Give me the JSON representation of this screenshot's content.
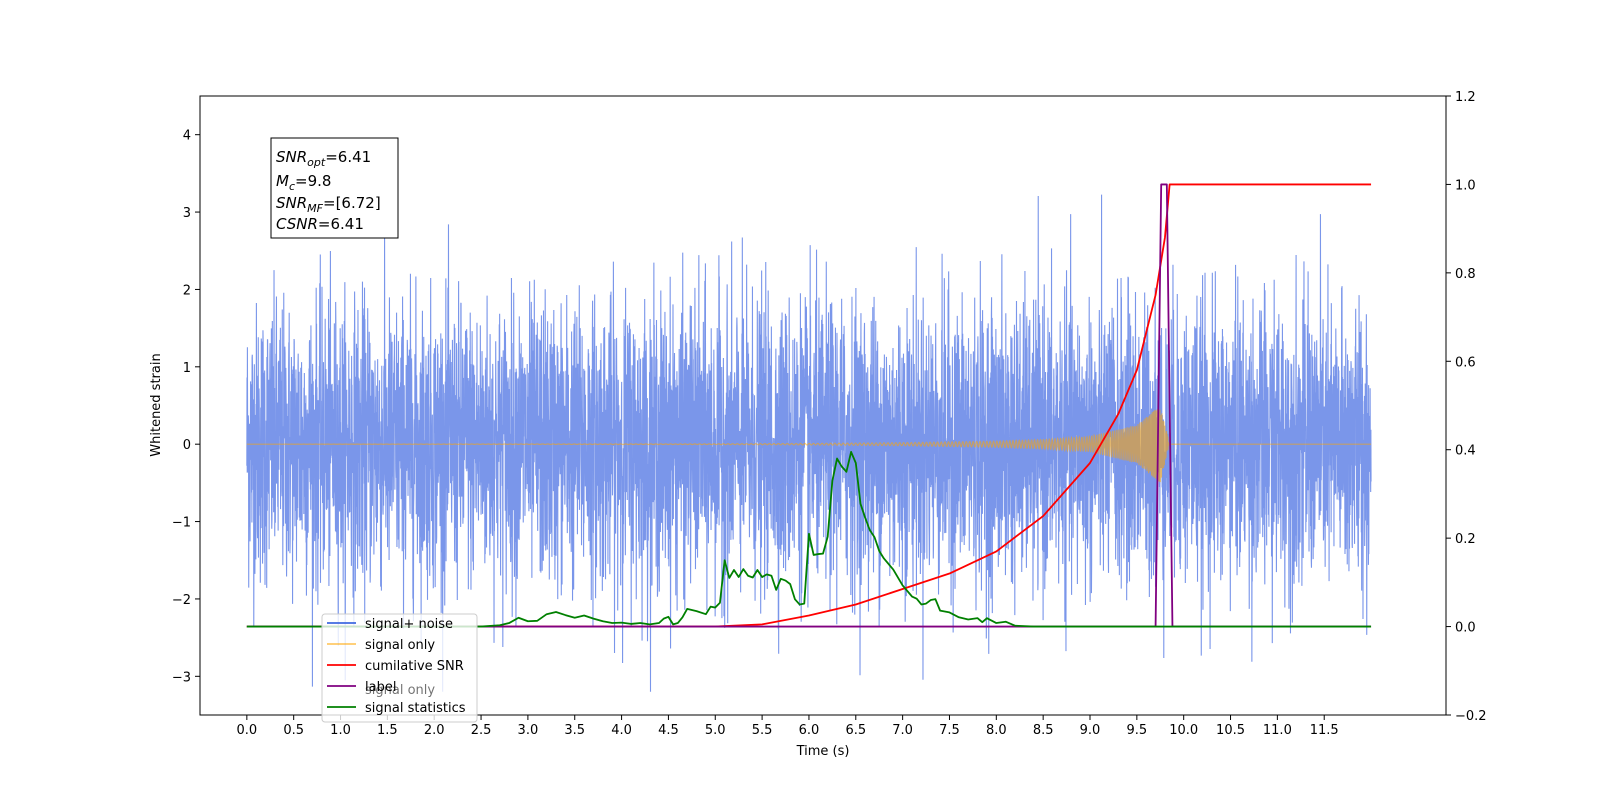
{
  "chart_data": {
    "type": "line",
    "xlabel": "Time (s)",
    "ylabel_left": "Whitened strain",
    "ylabel_right": "",
    "xlim": [
      -0.5,
      12.8
    ],
    "ylim_left": [
      -3.5,
      4.5
    ],
    "ylim_right": [
      -0.2,
      1.2
    ],
    "xticks": [
      "0.0",
      "0.5",
      "1.0",
      "1.5",
      "2.0",
      "2.5",
      "3.0",
      "3.5",
      "4.0",
      "4.5",
      "5.0",
      "5.5",
      "6.0",
      "6.5",
      "7.0",
      "7.5",
      "8.0",
      "8.5",
      "9.0",
      "9.5",
      "10.0",
      "10.5",
      "11.0",
      "11.5"
    ],
    "yticks_left": [
      "−3",
      "−2",
      "−1",
      "0",
      "1",
      "2",
      "3",
      "4"
    ],
    "yticks_right": [
      "−0.2",
      "0.0",
      "0.2",
      "0.4",
      "0.6",
      "0.8",
      "1.0",
      "1.2"
    ],
    "annotation": {
      "snr_opt": "6.41",
      "mc": "9.8",
      "snr_mf": "[6.72]",
      "csnr": "6.41"
    },
    "legend": [
      {
        "label": "signal+ noise",
        "color": "#4169e1"
      },
      {
        "label": "signal only",
        "color": "#ffa500"
      },
      {
        "label": "cumilative SNR",
        "color": "#ff0000"
      },
      {
        "label": "label",
        "color": "#800080"
      },
      {
        "label": "signal statistics",
        "color": "#008000"
      }
    ],
    "hidden_legend_text": "signal only",
    "series": [
      {
        "name": "signal+ noise",
        "axis": "left",
        "color": "#4169e1",
        "x_range": [
          0.0,
          12.0
        ],
        "mean": 0.0,
        "std": 0.9,
        "max": 4.1,
        "min": -3.2,
        "note_values": "dense noise, values span about -3.2 to 4.1"
      },
      {
        "name": "signal only",
        "axis": "left",
        "color": "#ffa500",
        "x": [
          0.0,
          5.0,
          6.0,
          7.0,
          8.0,
          8.5,
          9.0,
          9.5,
          9.75,
          9.85,
          12.0
        ],
        "envelope": [
          0.0,
          0.005,
          0.01,
          0.02,
          0.04,
          0.06,
          0.1,
          0.25,
          0.5,
          0.0,
          0.0
        ]
      },
      {
        "name": "cumilative SNR",
        "axis": "right",
        "color": "#ff0000",
        "x": [
          0.0,
          5.0,
          5.5,
          6.0,
          6.5,
          7.0,
          7.5,
          8.0,
          8.5,
          9.0,
          9.3,
          9.5,
          9.7,
          9.8,
          9.85,
          10.0,
          12.0
        ],
        "y": [
          0.0,
          0.0,
          0.005,
          0.025,
          0.05,
          0.085,
          0.12,
          0.17,
          0.25,
          0.37,
          0.48,
          0.58,
          0.75,
          0.88,
          1.0,
          1.0,
          1.0
        ]
      },
      {
        "name": "label",
        "axis": "right",
        "color": "#800080",
        "x": [
          0.0,
          9.7,
          9.76,
          9.82,
          9.88,
          9.88,
          12.0
        ],
        "y": [
          0.0,
          0.0,
          1.0,
          1.0,
          0.0,
          0.0,
          0.0
        ]
      },
      {
        "name": "signal statistics",
        "axis": "right",
        "color": "#008000",
        "x": [
          0.0,
          2.5,
          2.7,
          2.8,
          2.9,
          3.0,
          3.1,
          3.2,
          3.3,
          3.4,
          3.5,
          3.6,
          3.7,
          3.8,
          3.9,
          4.0,
          4.1,
          4.2,
          4.3,
          4.4,
          4.45,
          4.5,
          4.55,
          4.6,
          4.65,
          4.7,
          4.8,
          4.9,
          4.95,
          5.0,
          5.05,
          5.1,
          5.15,
          5.2,
          5.25,
          5.3,
          5.35,
          5.4,
          5.45,
          5.5,
          5.55,
          5.6,
          5.65,
          5.7,
          5.75,
          5.8,
          5.85,
          5.9,
          5.95,
          6.0,
          6.05,
          6.1,
          6.15,
          6.2,
          6.25,
          6.3,
          6.35,
          6.4,
          6.45,
          6.5,
          6.55,
          6.6,
          6.65,
          6.7,
          6.75,
          6.8,
          6.9,
          7.0,
          7.1,
          7.15,
          7.2,
          7.25,
          7.3,
          7.35,
          7.4,
          7.5,
          7.6,
          7.7,
          7.8,
          7.85,
          7.9,
          8.0,
          8.1,
          8.2,
          8.3,
          8.4,
          9.0,
          12.0
        ],
        "y": [
          0.0,
          0.0,
          0.003,
          0.008,
          0.02,
          0.012,
          0.013,
          0.028,
          0.033,
          0.026,
          0.02,
          0.025,
          0.018,
          0.012,
          0.008,
          0.009,
          0.006,
          0.008,
          0.005,
          0.008,
          0.018,
          0.022,
          0.005,
          0.008,
          0.021,
          0.04,
          0.035,
          0.028,
          0.045,
          0.043,
          0.054,
          0.15,
          0.11,
          0.128,
          0.112,
          0.13,
          0.115,
          0.111,
          0.128,
          0.112,
          0.118,
          0.115,
          0.083,
          0.108,
          0.104,
          0.096,
          0.062,
          0.05,
          0.052,
          0.21,
          0.162,
          0.164,
          0.165,
          0.203,
          0.33,
          0.38,
          0.362,
          0.35,
          0.395,
          0.37,
          0.278,
          0.246,
          0.218,
          0.202,
          0.171,
          0.154,
          0.129,
          0.093,
          0.068,
          0.063,
          0.05,
          0.052,
          0.06,
          0.062,
          0.036,
          0.032,
          0.021,
          0.016,
          0.019,
          0.01,
          0.019,
          0.008,
          0.011,
          0.002,
          0.001,
          0.0,
          0.0,
          0.0
        ]
      }
    ]
  }
}
